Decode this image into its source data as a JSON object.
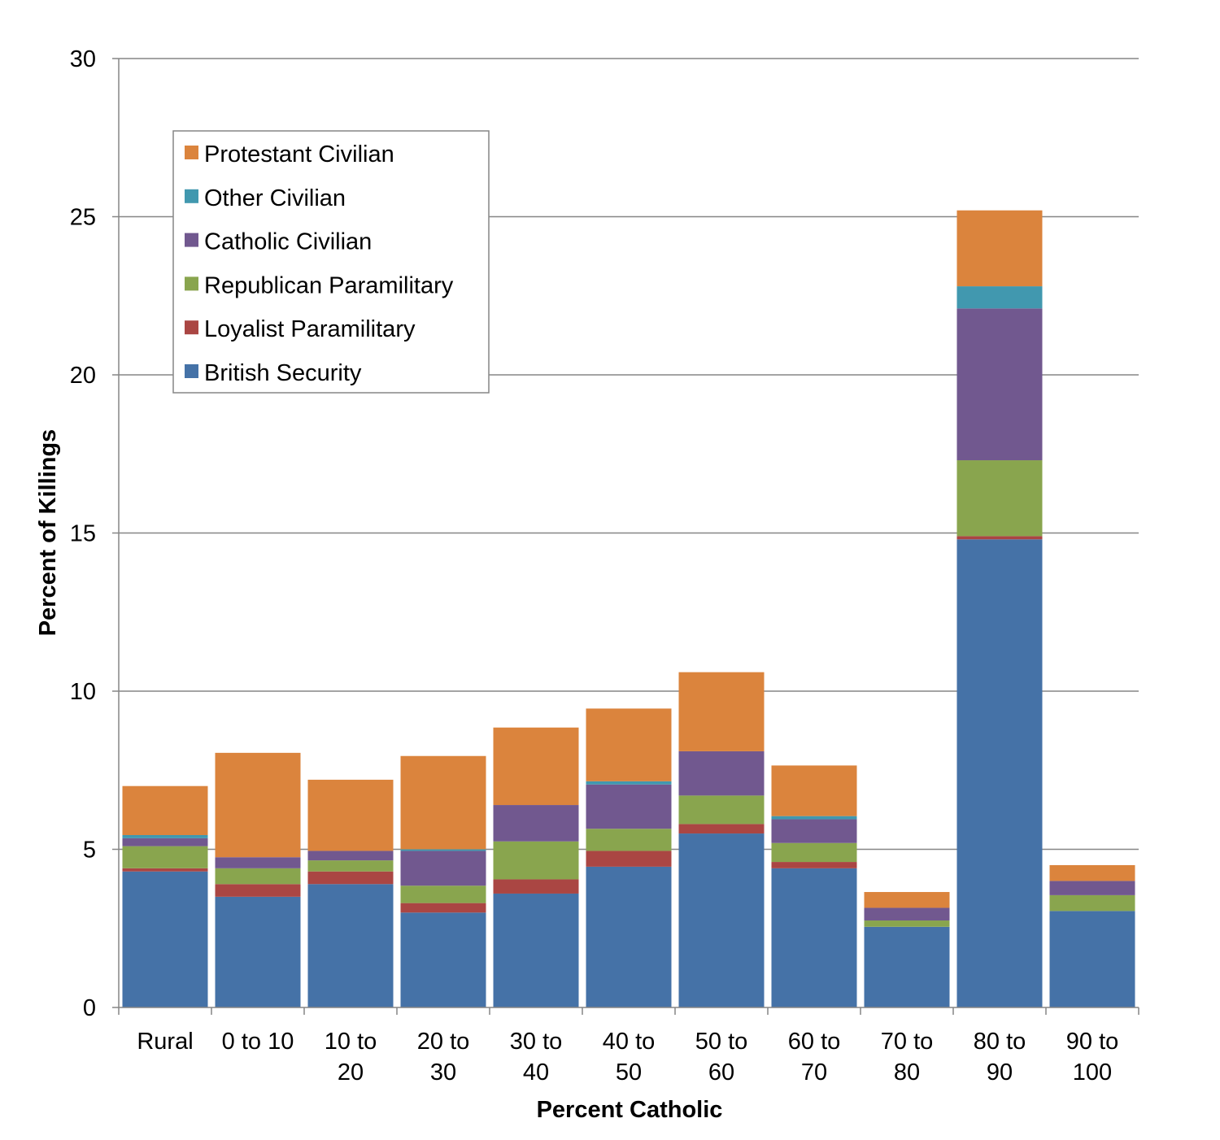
{
  "chart_data": {
    "type": "bar",
    "stacked": true,
    "title": "",
    "xlabel": "Percent Catholic",
    "ylabel": "Percent of Killings",
    "ylim": [
      0,
      30
    ],
    "yticks": [
      0,
      5,
      10,
      15,
      20,
      25,
      30
    ],
    "grid": true,
    "legend_position": "top-left",
    "categories": [
      [
        "Rural"
      ],
      [
        "0 to 10"
      ],
      [
        "10 to",
        "20"
      ],
      [
        "20 to",
        "30"
      ],
      [
        "30 to",
        "40"
      ],
      [
        "40 to",
        "50"
      ],
      [
        "50 to",
        "60"
      ],
      [
        "60 to",
        "70"
      ],
      [
        "70 to",
        "80"
      ],
      [
        "80 to",
        "90"
      ],
      [
        "90 to",
        "100"
      ]
    ],
    "series": [
      {
        "name": "British Security",
        "color": "#4572A7",
        "values": [
          4.3,
          3.5,
          3.9,
          3.0,
          3.6,
          4.45,
          5.5,
          4.4,
          2.55,
          14.8,
          3.05
        ]
      },
      {
        "name": "Loyalist Paramilitary",
        "color": "#AA4643",
        "values": [
          0.1,
          0.4,
          0.4,
          0.3,
          0.45,
          0.5,
          0.3,
          0.2,
          0.0,
          0.1,
          0.0
        ]
      },
      {
        "name": "Republican Paramilitary",
        "color": "#89A54E",
        "values": [
          0.7,
          0.5,
          0.35,
          0.55,
          1.2,
          0.7,
          0.9,
          0.6,
          0.2,
          2.4,
          0.5
        ]
      },
      {
        "name": "Catholic Civilian",
        "color": "#71588F",
        "values": [
          0.25,
          0.35,
          0.3,
          1.1,
          1.15,
          1.4,
          1.4,
          0.75,
          0.4,
          4.8,
          0.45
        ]
      },
      {
        "name": "Other Civilian",
        "color": "#4198AF",
        "values": [
          0.1,
          0.0,
          0.0,
          0.05,
          0.0,
          0.1,
          0.0,
          0.1,
          0.0,
          0.7,
          0.0
        ]
      },
      {
        "name": "Protestant Civilian",
        "color": "#DB843D",
        "values": [
          1.55,
          3.3,
          2.25,
          2.95,
          2.45,
          2.3,
          2.5,
          1.6,
          0.5,
          2.4,
          0.5
        ]
      }
    ]
  }
}
